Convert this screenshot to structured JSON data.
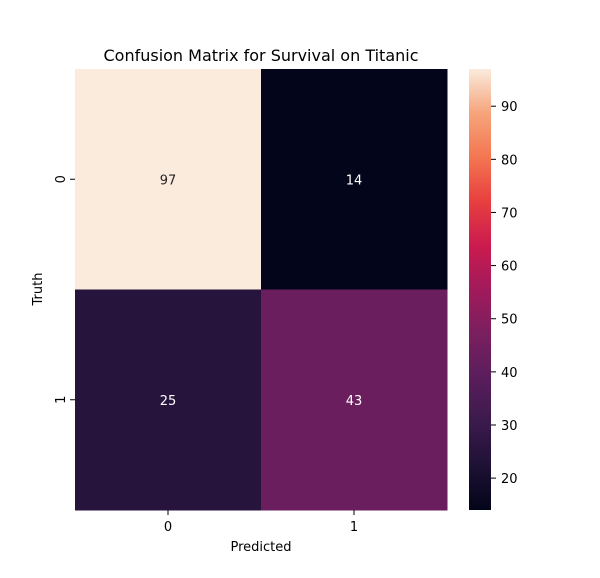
{
  "chart_data": {
    "type": "heatmap",
    "title": "Confusion Matrix for Survival on Titanic",
    "xlabel": "Predicted",
    "ylabel": "Truth",
    "x_categories": [
      "0",
      "1"
    ],
    "y_categories": [
      "0",
      "1"
    ],
    "values": [
      [
        97,
        14
      ],
      [
        25,
        43
      ]
    ],
    "colorbar": {
      "range": [
        14,
        97
      ],
      "ticks": [
        20,
        30,
        40,
        50,
        60,
        70,
        80,
        90
      ],
      "colormap": "rocket"
    },
    "annotations": true
  }
}
